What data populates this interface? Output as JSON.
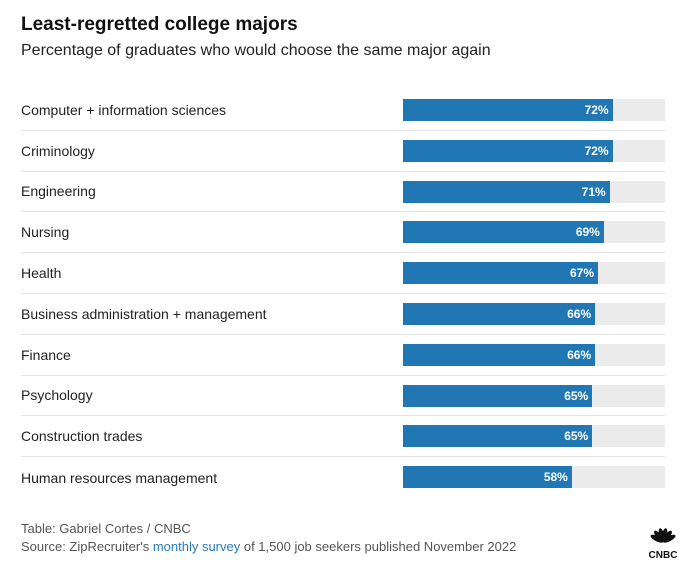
{
  "title": "Least-regretted college majors",
  "subtitle": "Percentage of graduates who would choose the same major again",
  "chart_data": {
    "type": "bar",
    "orientation": "horizontal",
    "title": "Least-regretted college majors",
    "subtitle": "Percentage of graduates who would choose the same major again",
    "categories": [
      "Computer + information sciences",
      "Criminology",
      "Engineering",
      "Nursing",
      "Health",
      "Business administration + management",
      "Finance",
      "Psychology",
      "Construction trades",
      "Human resources management"
    ],
    "values": [
      72,
      72,
      71,
      69,
      67,
      66,
      66,
      65,
      65,
      58
    ],
    "value_labels": [
      "72%",
      "72%",
      "71%",
      "69%",
      "67%",
      "66%",
      "66%",
      "65%",
      "65%",
      "58%"
    ],
    "xlim": [
      0,
      90
    ],
    "bar_color": "#2077b4",
    "track_color": "#ebebeb",
    "grid": false,
    "legend": "none"
  },
  "footer": {
    "credit": "Table: Gabriel Cortes / CNBC",
    "source_prefix": "Source: ZipRecruiter's ",
    "source_link": "monthly survey",
    "source_suffix": " of 1,500 job seekers published November 2022",
    "link_color": "#2b7bb9"
  },
  "logo": {
    "text": "CNBC",
    "icon": "cnbc-peacock-icon"
  }
}
